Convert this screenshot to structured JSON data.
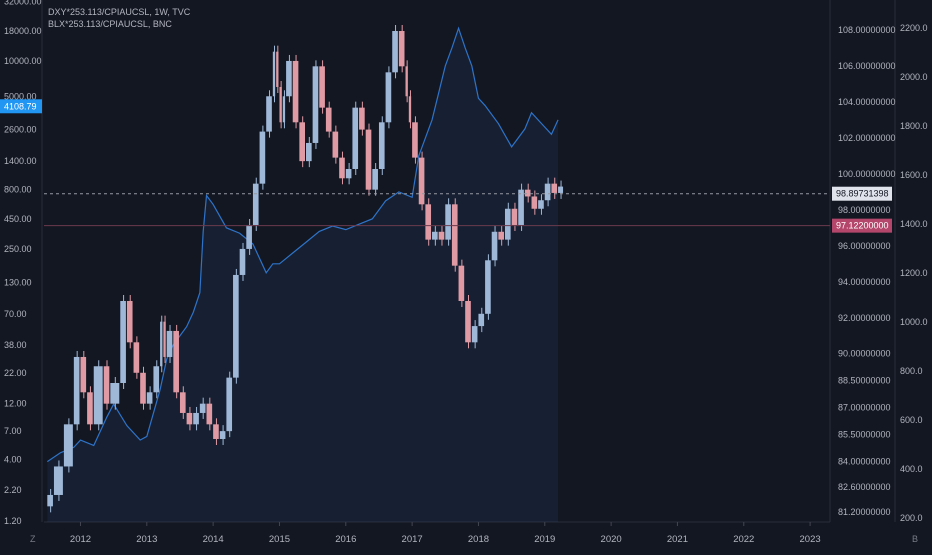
{
  "legend": {
    "line1": "DXY*253.113/CPIAUCSL, 1W, TVC",
    "line2": "BLX*253.113/CPIAUCSL, BNC"
  },
  "corner_left": "Z",
  "corner_right": "B",
  "colors": {
    "background": "#131722",
    "dxy_line": "#2e73c9",
    "blx_up": "#9fb8d8",
    "blx_down": "#e09aa4",
    "price_tag_blue": "#2196f3",
    "price_tag_pink": "#b4466b",
    "grid": "#1f2330"
  },
  "chart_data": {
    "type": "line",
    "title": "",
    "x_ticks": [
      "2012",
      "2013",
      "2014",
      "2015",
      "2016",
      "2017",
      "2018",
      "2019",
      "2020",
      "2021",
      "2022",
      "2023"
    ],
    "left_axis_ticks": [
      "32000.00",
      "18000.00",
      "10000.00",
      "5000.00",
      "2600.00",
      "1400.00",
      "800.00",
      "450.00",
      "250.00",
      "130.00",
      "70.00",
      "38.00",
      "22.00",
      "12.00",
      "7.00",
      "4.00",
      "2.20",
      "1.20"
    ],
    "mid_axis_ticks": [
      "108.00000000",
      "106.00000000",
      "104.00000000",
      "102.00000000",
      "100.00000000",
      "98.00000000",
      "96.00000000",
      "94.00000000",
      "92.00000000",
      "90.00000000",
      "88.50000000",
      "87.00000000",
      "85.50000000",
      "84.00000000",
      "82.60000000",
      "81.20000000"
    ],
    "right_axis_ticks": [
      "2200.0",
      "2000.0",
      "1800.0",
      "1600.0",
      "1400.0",
      "1200.0",
      "1000.0",
      "800.0",
      "600.0",
      "400.0",
      "200.0"
    ],
    "price_labels": {
      "blx_last": "4108.79",
      "dxy_crosshair": "98.89731398",
      "dxy_last": "97.12200000"
    },
    "series": [
      {
        "symbol": "BLX*253.113/CPIAUCSL",
        "axis": "left",
        "style": "candles",
        "x": [
          2011.5,
          2011.6,
          2011.75,
          2011.9,
          2012.0,
          2012.1,
          2012.2,
          2012.35,
          2012.45,
          2012.6,
          2012.7,
          2012.8,
          2012.9,
          2013.0,
          2013.1,
          2013.2,
          2013.25,
          2013.3,
          2013.4,
          2013.5,
          2013.6,
          2013.7,
          2013.8,
          2013.9,
          2014.0,
          2014.1,
          2014.2,
          2014.3,
          2014.4,
          2014.5,
          2014.6,
          2014.7,
          2014.8,
          2014.9,
          2014.95,
          2015.0,
          2015.05,
          2015.1,
          2015.2,
          2015.3,
          2015.4,
          2015.5,
          2015.6,
          2015.7,
          2015.8,
          2015.9,
          2016.0,
          2016.1,
          2016.2,
          2016.3,
          2016.4,
          2016.5,
          2016.6,
          2016.7,
          2016.8,
          2016.9,
          2016.95,
          2017.0,
          2017.1,
          2017.2,
          2017.3,
          2017.4,
          2017.5,
          2017.6,
          2017.7,
          2017.8,
          2017.9,
          2018.0,
          2018.1,
          2018.2,
          2018.3,
          2018.4,
          2018.5,
          2018.6,
          2018.7,
          2018.8,
          2018.9,
          2019.0,
          2019.1,
          2019.2
        ],
        "values": [
          2.0,
          3.5,
          8,
          30,
          15,
          8,
          25,
          12,
          18,
          90,
          40,
          22,
          12,
          15,
          25,
          60,
          30,
          50,
          15,
          10,
          8,
          10,
          12,
          8,
          6,
          7,
          20,
          150,
          250,
          400,
          900,
          2500,
          5000,
          12000,
          6000,
          3000,
          5000,
          10000,
          3000,
          1400,
          2000,
          9000,
          4000,
          2500,
          1500,
          1000,
          1200,
          4000,
          2600,
          800,
          1200,
          3000,
          8000,
          18000,
          9000,
          5000,
          3000,
          1500,
          600,
          300,
          350,
          300,
          600,
          180,
          90,
          40,
          55,
          70,
          200,
          350,
          300,
          550,
          400,
          800,
          700,
          550,
          650,
          900,
          750,
          850
        ]
      },
      {
        "symbol": "DXY*253.113/CPIAUCSL",
        "axis": "middle",
        "style": "line",
        "x": [
          2011.5,
          2011.7,
          2011.9,
          2012.0,
          2012.2,
          2012.4,
          2012.5,
          2012.7,
          2012.9,
          2013.0,
          2013.2,
          2013.3,
          2013.4,
          2013.6,
          2013.7,
          2013.8,
          2013.85,
          2013.9,
          2014.0,
          2014.2,
          2014.4,
          2014.6,
          2014.7,
          2014.8,
          2014.9,
          2015.0,
          2015.2,
          2015.4,
          2015.6,
          2015.8,
          2016.0,
          2016.2,
          2016.4,
          2016.6,
          2016.8,
          2017.0,
          2017.1,
          2017.2,
          2017.3,
          2017.4,
          2017.5,
          2017.6,
          2017.7,
          2017.8,
          2017.9,
          2018.0,
          2018.1,
          2018.3,
          2018.5,
          2018.7,
          2018.8,
          2019.0,
          2019.1,
          2019.2
        ],
        "values": [
          84.0,
          84.5,
          84.8,
          85.2,
          84.9,
          86.5,
          87.2,
          86.0,
          85.2,
          85.4,
          88.0,
          89.7,
          90.5,
          91.5,
          92.3,
          93.4,
          96.8,
          98.8,
          98.3,
          97.0,
          96.7,
          96.1,
          95.3,
          94.5,
          95.0,
          95.0,
          95.6,
          96.2,
          96.8,
          97.1,
          96.9,
          97.2,
          97.5,
          98.5,
          99.0,
          98.7,
          101.0,
          102.0,
          103.0,
          104.5,
          106.0,
          107.0,
          108.1,
          107.0,
          106.0,
          104.2,
          103.8,
          102.8,
          101.5,
          102.5,
          103.4,
          102.6,
          102.2,
          103.0
        ]
      }
    ],
    "x_range": [
      2011.45,
      2023.3
    ],
    "grid": false,
    "log_scale_left": true
  }
}
